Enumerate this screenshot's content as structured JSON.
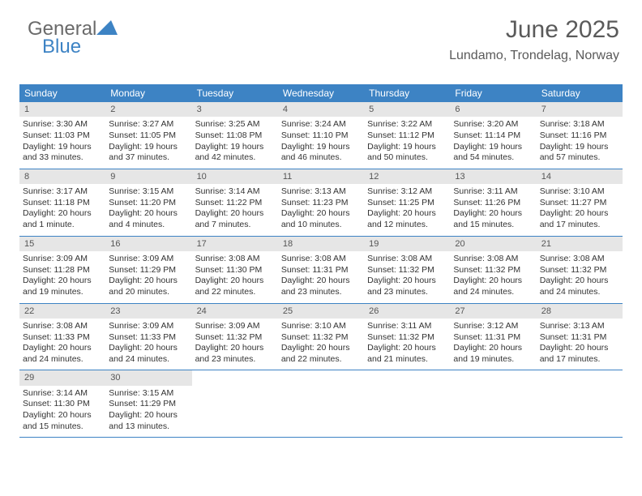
{
  "logo": {
    "part1": "General",
    "part2": "Blue"
  },
  "header": {
    "title": "June 2025",
    "subtitle": "Lundamo, Trondelag, Norway"
  },
  "colors": {
    "header_blue": "#3d83c4",
    "daynum_bg": "#e6e6e6",
    "text": "#333333",
    "logo_gray": "#6a6a6a"
  },
  "days_of_week": [
    "Sunday",
    "Monday",
    "Tuesday",
    "Wednesday",
    "Thursday",
    "Friday",
    "Saturday"
  ],
  "days": [
    {
      "n": "1",
      "sunrise": "3:30 AM",
      "sunset": "11:03 PM",
      "daylight": "19 hours and 33 minutes."
    },
    {
      "n": "2",
      "sunrise": "3:27 AM",
      "sunset": "11:05 PM",
      "daylight": "19 hours and 37 minutes."
    },
    {
      "n": "3",
      "sunrise": "3:25 AM",
      "sunset": "11:08 PM",
      "daylight": "19 hours and 42 minutes."
    },
    {
      "n": "4",
      "sunrise": "3:24 AM",
      "sunset": "11:10 PM",
      "daylight": "19 hours and 46 minutes."
    },
    {
      "n": "5",
      "sunrise": "3:22 AM",
      "sunset": "11:12 PM",
      "daylight": "19 hours and 50 minutes."
    },
    {
      "n": "6",
      "sunrise": "3:20 AM",
      "sunset": "11:14 PM",
      "daylight": "19 hours and 54 minutes."
    },
    {
      "n": "7",
      "sunrise": "3:18 AM",
      "sunset": "11:16 PM",
      "daylight": "19 hours and 57 minutes."
    },
    {
      "n": "8",
      "sunrise": "3:17 AM",
      "sunset": "11:18 PM",
      "daylight": "20 hours and 1 minute."
    },
    {
      "n": "9",
      "sunrise": "3:15 AM",
      "sunset": "11:20 PM",
      "daylight": "20 hours and 4 minutes."
    },
    {
      "n": "10",
      "sunrise": "3:14 AM",
      "sunset": "11:22 PM",
      "daylight": "20 hours and 7 minutes."
    },
    {
      "n": "11",
      "sunrise": "3:13 AM",
      "sunset": "11:23 PM",
      "daylight": "20 hours and 10 minutes."
    },
    {
      "n": "12",
      "sunrise": "3:12 AM",
      "sunset": "11:25 PM",
      "daylight": "20 hours and 12 minutes."
    },
    {
      "n": "13",
      "sunrise": "3:11 AM",
      "sunset": "11:26 PM",
      "daylight": "20 hours and 15 minutes."
    },
    {
      "n": "14",
      "sunrise": "3:10 AM",
      "sunset": "11:27 PM",
      "daylight": "20 hours and 17 minutes."
    },
    {
      "n": "15",
      "sunrise": "3:09 AM",
      "sunset": "11:28 PM",
      "daylight": "20 hours and 19 minutes."
    },
    {
      "n": "16",
      "sunrise": "3:09 AM",
      "sunset": "11:29 PM",
      "daylight": "20 hours and 20 minutes."
    },
    {
      "n": "17",
      "sunrise": "3:08 AM",
      "sunset": "11:30 PM",
      "daylight": "20 hours and 22 minutes."
    },
    {
      "n": "18",
      "sunrise": "3:08 AM",
      "sunset": "11:31 PM",
      "daylight": "20 hours and 23 minutes."
    },
    {
      "n": "19",
      "sunrise": "3:08 AM",
      "sunset": "11:32 PM",
      "daylight": "20 hours and 23 minutes."
    },
    {
      "n": "20",
      "sunrise": "3:08 AM",
      "sunset": "11:32 PM",
      "daylight": "20 hours and 24 minutes."
    },
    {
      "n": "21",
      "sunrise": "3:08 AM",
      "sunset": "11:32 PM",
      "daylight": "20 hours and 24 minutes."
    },
    {
      "n": "22",
      "sunrise": "3:08 AM",
      "sunset": "11:33 PM",
      "daylight": "20 hours and 24 minutes."
    },
    {
      "n": "23",
      "sunrise": "3:09 AM",
      "sunset": "11:33 PM",
      "daylight": "20 hours and 24 minutes."
    },
    {
      "n": "24",
      "sunrise": "3:09 AM",
      "sunset": "11:32 PM",
      "daylight": "20 hours and 23 minutes."
    },
    {
      "n": "25",
      "sunrise": "3:10 AM",
      "sunset": "11:32 PM",
      "daylight": "20 hours and 22 minutes."
    },
    {
      "n": "26",
      "sunrise": "3:11 AM",
      "sunset": "11:32 PM",
      "daylight": "20 hours and 21 minutes."
    },
    {
      "n": "27",
      "sunrise": "3:12 AM",
      "sunset": "11:31 PM",
      "daylight": "20 hours and 19 minutes."
    },
    {
      "n": "28",
      "sunrise": "3:13 AM",
      "sunset": "11:31 PM",
      "daylight": "20 hours and 17 minutes."
    },
    {
      "n": "29",
      "sunrise": "3:14 AM",
      "sunset": "11:30 PM",
      "daylight": "20 hours and 15 minutes."
    },
    {
      "n": "30",
      "sunrise": "3:15 AM",
      "sunset": "11:29 PM",
      "daylight": "20 hours and 13 minutes."
    }
  ],
  "labels": {
    "sunrise": "Sunrise: ",
    "sunset": "Sunset: ",
    "daylight": "Daylight: "
  },
  "layout": {
    "cols": 7,
    "first_day_col": 0,
    "total_days": 30
  }
}
